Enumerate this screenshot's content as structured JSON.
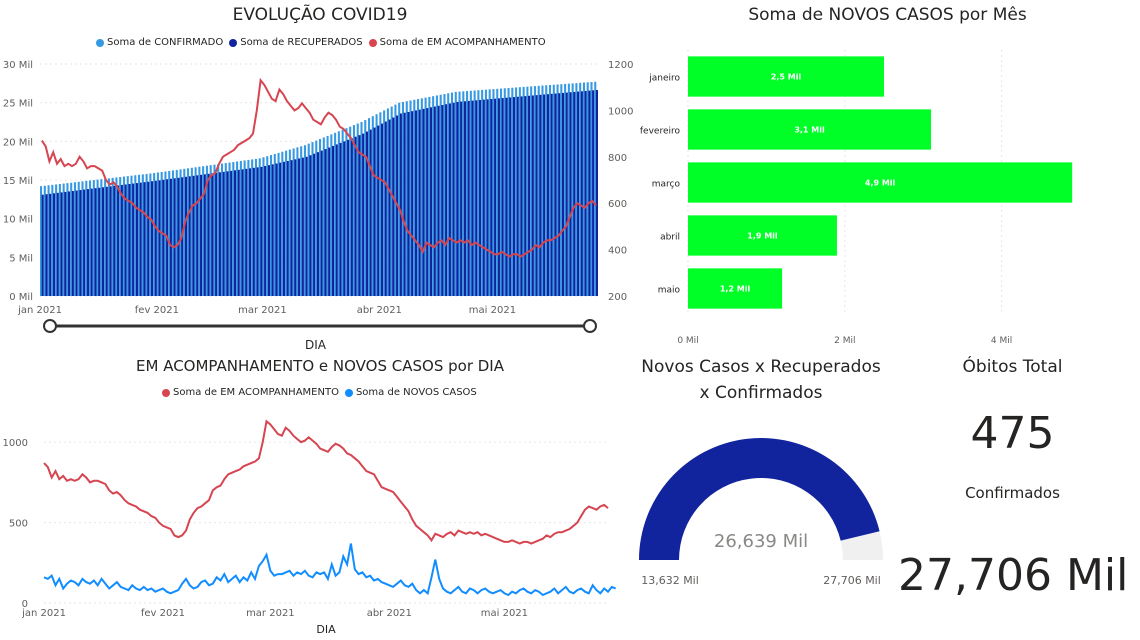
{
  "chart_data": [
    {
      "id": "evolucao",
      "type": "bar+line",
      "title": "EVOLUÇÃO COVID19",
      "xlabel": "DIA",
      "x_start": "2021-01-01",
      "x_ticks": [
        "jan 2021",
        "fev 2021",
        "mar 2021",
        "abr 2021",
        "mai 2021"
      ],
      "y_left_ticks": [
        "0 Mil",
        "5 Mil",
        "10 Mil",
        "15 Mil",
        "20 Mil",
        "25 Mil",
        "30 Mil"
      ],
      "y_left_lim": [
        0,
        30000
      ],
      "y_right_ticks": [
        "200",
        "400",
        "600",
        "800",
        "1000",
        "1200"
      ],
      "y_right_lim": [
        200,
        1200
      ],
      "series": [
        {
          "name": "Soma de CONFIRMADO",
          "color": "#3599e3",
          "kind": "bar",
          "axis": "left",
          "keyframes": [
            [
              0,
              14200
            ],
            [
              30,
              15900
            ],
            [
              58,
              17800
            ],
            [
              70,
              19500
            ],
            [
              85,
              22500
            ],
            [
              95,
              25000
            ],
            [
              110,
              26400
            ],
            [
              147,
              27706
            ]
          ]
        },
        {
          "name": "Soma de RECUPERADOS",
          "color": "#12239e",
          "kind": "bar",
          "axis": "left",
          "keyframes": [
            [
              0,
              13100
            ],
            [
              30,
              14900
            ],
            [
              58,
              16700
            ],
            [
              70,
              18000
            ],
            [
              85,
              21000
            ],
            [
              95,
              23600
            ],
            [
              110,
              25100
            ],
            [
              147,
              26639
            ]
          ]
        },
        {
          "name": "Soma de EM ACOMPANHAMENTO",
          "color": "#d64550",
          "kind": "line",
          "axis": "right",
          "values": [
            870,
            845,
            780,
            820,
            770,
            790,
            760,
            770,
            760,
            770,
            800,
            780,
            750,
            760,
            760,
            750,
            740,
            700,
            680,
            690,
            670,
            640,
            620,
            610,
            600,
            580,
            570,
            560,
            540,
            530,
            500,
            480,
            470,
            460,
            420,
            410,
            420,
            450,
            520,
            560,
            590,
            600,
            620,
            640,
            700,
            720,
            730,
            770,
            800,
            810,
            820,
            830,
            850,
            860,
            870,
            880,
            900,
            1000,
            1130,
            1110,
            1080,
            1050,
            1040,
            1090,
            1070,
            1040,
            1020,
            1000,
            1010,
            1030,
            1010,
            990,
            960,
            950,
            940,
            970,
            990,
            980,
            960,
            930,
            920,
            900,
            880,
            850,
            820,
            810,
            800,
            760,
            720,
            710,
            700,
            690,
            660,
            630,
            600,
            570,
            520,
            480,
            460,
            440,
            420,
            390,
            430,
            420,
            410,
            430,
            440,
            420,
            450,
            440,
            430,
            440,
            430,
            440,
            420,
            430,
            420,
            410,
            400,
            390,
            380,
            380,
            390,
            380,
            370,
            380,
            380,
            370,
            380,
            390,
            400,
            420,
            410,
            430,
            440,
            440,
            450,
            460,
            480,
            500,
            540,
            580,
            600,
            590,
            580,
            600,
            610,
            590
          ]
        }
      ]
    },
    {
      "id": "acompanhamento",
      "type": "line",
      "title": "EM ACOMPANHAMENTO e NOVOS CASOS por DIA",
      "xlabel": "DIA",
      "x_start": "2021-01-01",
      "x_ticks": [
        "jan 2021",
        "fev 2021",
        "mar 2021",
        "abr 2021",
        "mai 2021"
      ],
      "y_ticks": [
        "0",
        "500",
        "1000"
      ],
      "ylim": [
        0,
        1200
      ],
      "series": [
        {
          "name": "Soma de EM ACOMPANHAMENTO",
          "color": "#d64550",
          "ref": "evolucao.2"
        },
        {
          "name": "Soma de NOVOS CASOS",
          "color": "#118dff",
          "values": [
            160,
            150,
            170,
            110,
            150,
            90,
            120,
            140,
            130,
            110,
            150,
            130,
            120,
            140,
            110,
            150,
            120,
            90,
            110,
            130,
            100,
            90,
            80,
            110,
            90,
            80,
            100,
            80,
            90,
            70,
            80,
            90,
            70,
            60,
            70,
            80,
            120,
            150,
            110,
            90,
            100,
            130,
            140,
            110,
            120,
            160,
            140,
            180,
            130,
            150,
            170,
            130,
            160,
            140,
            190,
            150,
            230,
            260,
            300,
            200,
            170,
            180,
            180,
            190,
            200,
            170,
            190,
            180,
            200,
            170,
            160,
            190,
            180,
            190,
            150,
            240,
            170,
            190,
            290,
            240,
            370,
            210,
            180,
            190,
            160,
            170,
            140,
            150,
            130,
            120,
            110,
            100,
            120,
            140,
            110,
            100,
            120,
            80,
            60,
            80,
            60,
            160,
            270,
            150,
            90,
            70,
            60,
            80,
            100,
            70,
            60,
            90,
            80,
            60,
            80,
            90,
            70,
            60,
            70,
            80,
            60,
            50,
            70,
            60,
            80,
            90,
            70,
            60,
            80,
            70,
            50,
            60,
            70,
            90,
            60,
            80,
            100,
            70,
            60,
            80,
            90,
            70,
            60,
            110,
            80,
            60,
            90,
            70,
            100,
            90
          ]
        }
      ]
    },
    {
      "id": "novos-casos-mes",
      "type": "bar",
      "orientation": "horizontal",
      "title": "Soma de NOVOS CASOS por Mês",
      "color": "#00ff27",
      "categories": [
        "janeiro",
        "fevereiro",
        "março",
        "abril",
        "maio"
      ],
      "values": [
        2500,
        3100,
        4900,
        1900,
        1200
      ],
      "data_labels": [
        "2,5 Mil",
        "3,1 Mil",
        "4,9 Mil",
        "1,9 Mil",
        "1,2 Mil"
      ],
      "x_ticks": [
        "0 Mil",
        "2 Mil",
        "4 Mil"
      ],
      "xlim": [
        0,
        5000
      ]
    },
    {
      "id": "gauge",
      "type": "gauge",
      "title": "Novos Casos x Recuperados x Confirmados",
      "title_lines": [
        "Novos Casos x Recuperados",
        "x Confirmados"
      ],
      "value": 26639,
      "value_label": "26,639 Mil",
      "min": 13632,
      "min_label": "13,632 Mil",
      "max": 27706,
      "max_label": "27,706 Mil",
      "fill_color": "#12239e",
      "track_color": "#f0f0f0"
    }
  ],
  "cards": {
    "obitos": {
      "label": "Óbitos Total",
      "value": "475"
    },
    "confirmados": {
      "label": "Confirmados",
      "value": "27,706 Mil"
    }
  },
  "slicer": {
    "label": "DIA"
  }
}
